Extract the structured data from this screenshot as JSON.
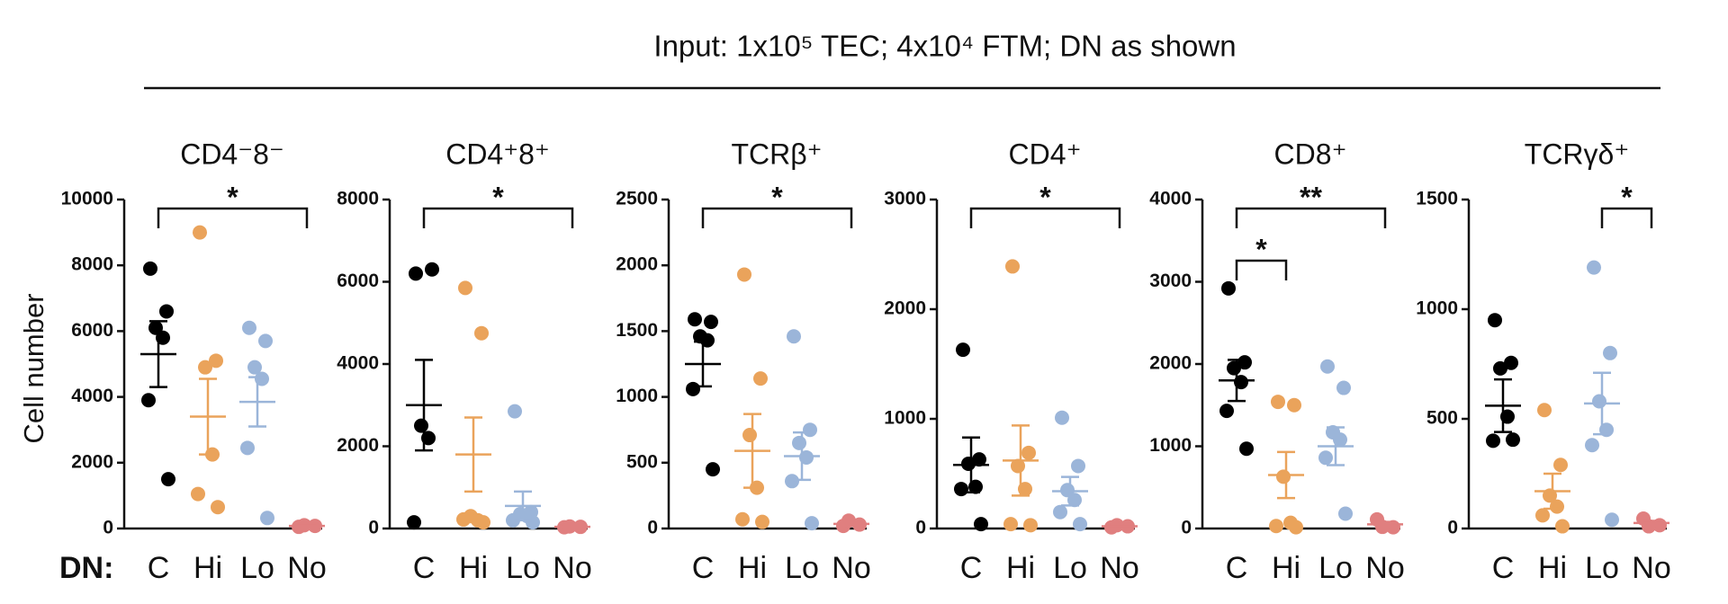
{
  "title": "Input: 1x10⁵ TEC; 4x10⁴ FTM; DN as shown",
  "y_label": "Cell number",
  "x_label": "DN:",
  "chart_data": [
    {
      "type": "scatter",
      "title": "CD4⁻8⁻",
      "categories": [
        "C",
        "Hi",
        "Lo",
        "No"
      ],
      "colors": [
        "#000000",
        "#eaa35b",
        "#9bb5d9",
        "#e07f7f"
      ],
      "points": [
        [
          7900,
          6600,
          6100,
          5800,
          3900,
          1500
        ],
        [
          9000,
          5100,
          4900,
          2250,
          1050,
          650
        ],
        [
          6100,
          5700,
          4900,
          4550,
          2450,
          320
        ],
        [
          50,
          80,
          100
        ]
      ],
      "means": [
        5300,
        3400,
        3850,
        80
      ],
      "sems": [
        1000,
        1150,
        750,
        15
      ],
      "ylim": [
        0,
        10000
      ],
      "yticks": [
        0,
        2000,
        4000,
        6000,
        8000,
        10000
      ],
      "brackets": [
        {
          "from": 0,
          "to": 3,
          "label": "*"
        }
      ]
    },
    {
      "type": "scatter",
      "title": "CD4⁺8⁺",
      "categories": [
        "C",
        "Hi",
        "Lo",
        "No"
      ],
      "colors": [
        "#000000",
        "#eaa35b",
        "#9bb5d9",
        "#e07f7f"
      ],
      "points": [
        [
          6200,
          6300,
          2500,
          2200,
          150
        ],
        [
          5850,
          4750,
          300,
          200,
          220,
          150
        ],
        [
          2850,
          400,
          350,
          300,
          200,
          150
        ],
        [
          30,
          40,
          50
        ]
      ],
      "means": [
        3000,
        1800,
        550,
        40
      ],
      "sems": [
        1100,
        900,
        350,
        10
      ],
      "ylim": [
        0,
        8000
      ],
      "yticks": [
        0,
        2000,
        4000,
        6000,
        8000
      ],
      "brackets": [
        {
          "from": 0,
          "to": 3,
          "label": "*"
        }
      ]
    },
    {
      "type": "scatter",
      "title": "TCRβ⁺",
      "categories": [
        "C",
        "Hi",
        "Lo",
        "No"
      ],
      "colors": [
        "#000000",
        "#eaa35b",
        "#9bb5d9",
        "#e07f7f"
      ],
      "points": [
        [
          1590,
          1570,
          1460,
          1430,
          1060,
          450
        ],
        [
          1930,
          1140,
          710,
          310,
          70,
          50
        ],
        [
          1460,
          750,
          650,
          540,
          360,
          40
        ],
        [
          20,
          30,
          60
        ]
      ],
      "means": [
        1250,
        590,
        550,
        35
      ],
      "sems": [
        170,
        280,
        180,
        12
      ],
      "ylim": [
        0,
        2500
      ],
      "yticks": [
        0,
        500,
        1000,
        1500,
        2000,
        2500
      ],
      "brackets": [
        {
          "from": 0,
          "to": 3,
          "label": "*"
        }
      ]
    },
    {
      "type": "scatter",
      "title": "CD4⁺",
      "categories": [
        "C",
        "Hi",
        "Lo",
        "No"
      ],
      "colors": [
        "#000000",
        "#eaa35b",
        "#9bb5d9",
        "#e07f7f"
      ],
      "points": [
        [
          1630,
          630,
          590,
          380,
          360,
          40
        ],
        [
          2390,
          690,
          570,
          360,
          40,
          30
        ],
        [
          1010,
          570,
          350,
          260,
          150,
          40
        ],
        [
          10,
          20,
          30
        ]
      ],
      "means": [
        580,
        620,
        340,
        20
      ],
      "sems": [
        250,
        320,
        130,
        6
      ],
      "ylim": [
        0,
        3000
      ],
      "yticks": [
        0,
        1000,
        2000,
        3000
      ],
      "brackets": [
        {
          "from": 0,
          "to": 3,
          "label": "*"
        }
      ]
    },
    {
      "type": "scatter",
      "title": "CD8⁺",
      "categories": [
        "C",
        "Hi",
        "Lo",
        "No"
      ],
      "colors": [
        "#000000",
        "#eaa35b",
        "#9bb5d9",
        "#e07f7f"
      ],
      "points": [
        [
          2920,
          2020,
          1950,
          1780,
          1430,
          970
        ],
        [
          1540,
          1500,
          630,
          70,
          30,
          15
        ],
        [
          1970,
          1710,
          1170,
          1080,
          860,
          180
        ],
        [
          110,
          15,
          20
        ]
      ],
      "means": [
        1800,
        650,
        1000,
        50
      ],
      "sems": [
        250,
        280,
        230,
        30
      ],
      "ylim": [
        0,
        4000
      ],
      "yticks": [
        0,
        1000,
        2000,
        3000,
        4000
      ],
      "brackets": [
        {
          "from": 0,
          "to": 1,
          "label": "*"
        },
        {
          "from": 0,
          "to": 3,
          "label": "**"
        }
      ]
    },
    {
      "type": "scatter",
      "title": "TCRγδ⁺",
      "categories": [
        "C",
        "Hi",
        "Lo",
        "No"
      ],
      "colors": [
        "#000000",
        "#eaa35b",
        "#9bb5d9",
        "#e07f7f"
      ],
      "points": [
        [
          950,
          755,
          730,
          510,
          400,
          405
        ],
        [
          540,
          290,
          150,
          100,
          60,
          10
        ],
        [
          1190,
          800,
          580,
          450,
          380,
          40
        ],
        [
          45,
          15,
          10
        ]
      ],
      "means": [
        560,
        170,
        570,
        25
      ],
      "sems": [
        120,
        80,
        140,
        10
      ],
      "ylim": [
        0,
        1500
      ],
      "yticks": [
        0,
        500,
        1000,
        1500
      ],
      "brackets": [
        {
          "from": 2,
          "to": 3,
          "label": "*"
        }
      ]
    }
  ]
}
